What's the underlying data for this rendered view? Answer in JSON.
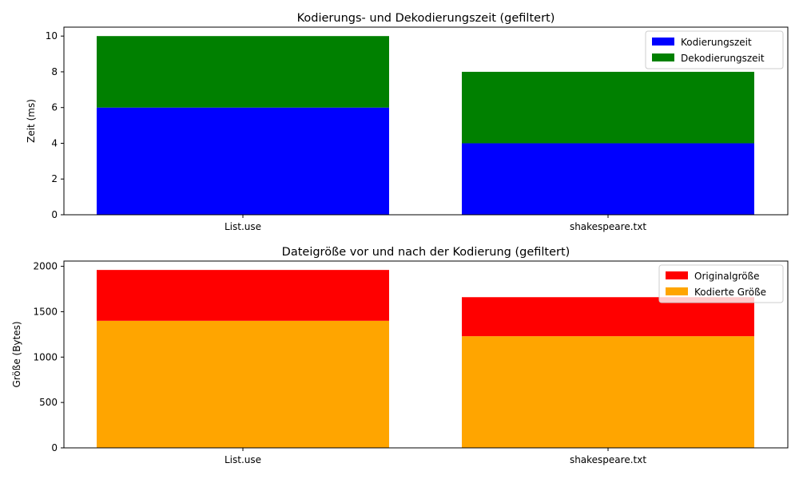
{
  "chart_data": [
    {
      "type": "bar",
      "stacked": true,
      "title": "Kodierungs- und Dekodierungszeit (gefiltert)",
      "xlabel": "",
      "ylabel": "Zeit (ms)",
      "categories": [
        "List.use",
        "shakespeare.txt"
      ],
      "series": [
        {
          "name": "Kodierungszeit",
          "values": [
            6,
            4
          ],
          "color": "#0000ff"
        },
        {
          "name": "Dekodierungszeit",
          "values": [
            4,
            4
          ],
          "color": "#008000"
        }
      ],
      "ylim": [
        0,
        10.5
      ],
      "yticks": [
        0,
        2,
        4,
        6,
        8,
        10
      ],
      "legend": "top-right",
      "grid": false
    },
    {
      "type": "bar",
      "stacked": true,
      "title": "Dateigröße vor und nach der Kodierung (gefiltert)",
      "xlabel": "",
      "ylabel": "Größe (Bytes)",
      "categories": [
        "List.use",
        "shakespeare.txt"
      ],
      "series": [
        {
          "name": "Originalgröße",
          "values": [
            560,
            430
          ],
          "color": "#ff0000"
        },
        {
          "name": "Kodierte Größe",
          "values": [
            1400,
            1230
          ],
          "color": "#ffa500"
        }
      ],
      "stack_order": [
        1,
        0
      ],
      "ylim": [
        0,
        2058
      ],
      "yticks": [
        0,
        500,
        1000,
        1500,
        2000
      ],
      "legend": "top-right",
      "grid": false
    }
  ]
}
